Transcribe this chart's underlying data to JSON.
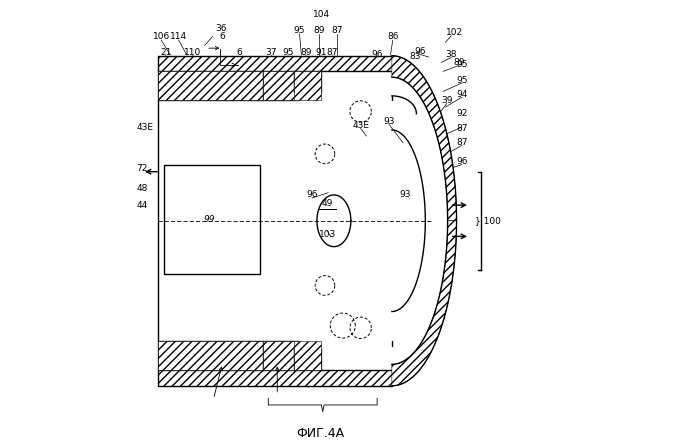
{
  "title": "ФИГ.4А",
  "bg_color": "#ffffff",
  "line_color": "#000000"
}
